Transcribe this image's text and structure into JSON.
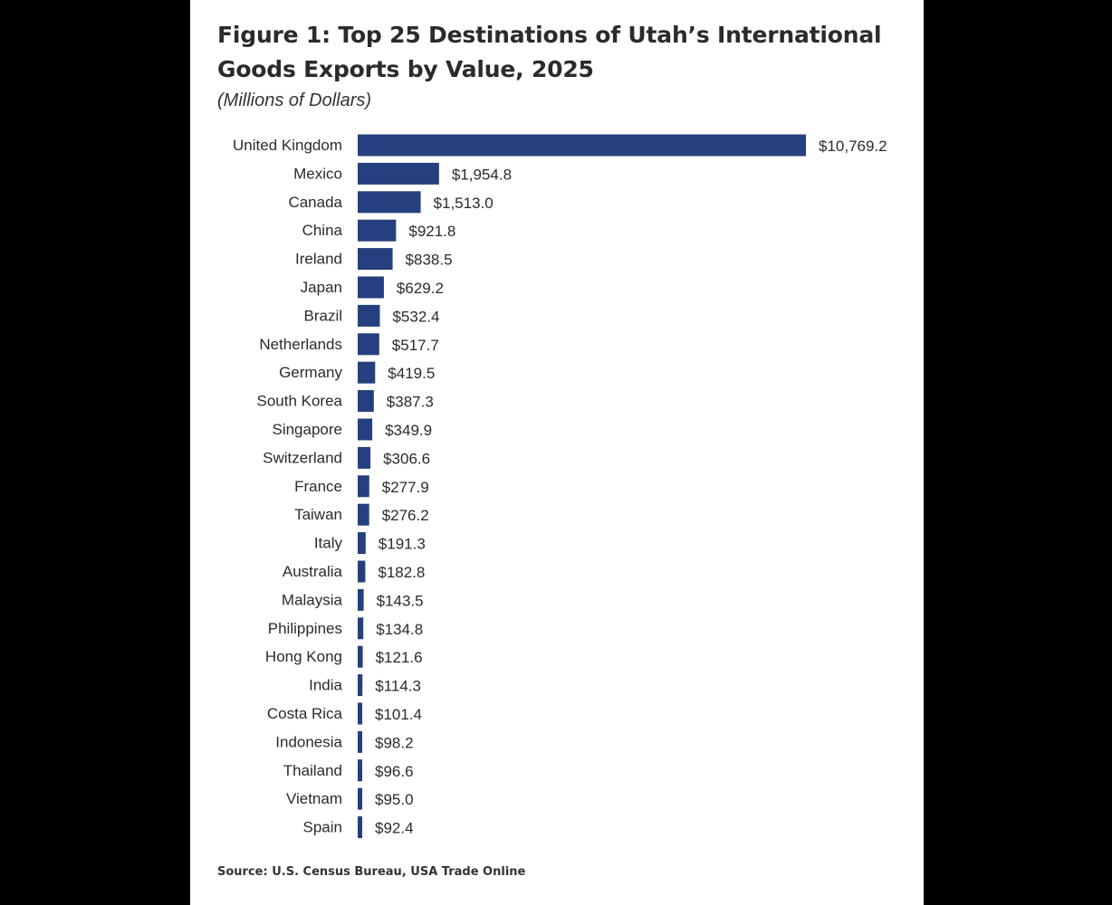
{
  "chart_data": {
    "type": "bar",
    "orientation": "horizontal",
    "title": "Figure 1: Top 25 Destinations of Utah’s International Goods Exports by Value, 2025",
    "subtitle": "(Millions of Dollars)",
    "source": "Source: U.S. Census Bureau, USA Trade Online",
    "bar_color": "#263f7e",
    "categories": [
      "United Kingdom",
      "Mexico",
      "Canada",
      "China",
      "Ireland",
      "Japan",
      "Brazil",
      "Netherlands",
      "Germany",
      "South Korea",
      "Singapore",
      "Switzerland",
      "France",
      "Taiwan",
      "Italy",
      "Australia",
      "Malaysia",
      "Philippines",
      "Hong Kong",
      "India",
      "Costa Rica",
      "Indonesia",
      "Thailand",
      "Vietnam",
      "Spain"
    ],
    "values": [
      10769.2,
      1954.8,
      1513.0,
      921.8,
      838.5,
      629.2,
      532.4,
      517.7,
      419.5,
      387.3,
      349.9,
      306.6,
      277.9,
      276.2,
      191.3,
      182.8,
      143.5,
      134.8,
      121.6,
      114.3,
      101.4,
      98.2,
      96.6,
      95.0,
      92.4
    ],
    "value_labels": [
      "$10,769.2",
      "$1,954.8",
      "$1,513.0",
      "$921.8",
      "$838.5",
      "$629.2",
      "$532.4",
      "$517.7",
      "$419.5",
      "$387.3",
      "$349.9",
      "$306.6",
      "$277.9",
      "$276.2",
      "$191.3",
      "$182.8",
      "$143.5",
      "$134.8",
      "$121.6",
      "$114.3",
      "$101.4",
      "$98.2",
      "$96.6",
      "$95.0",
      "$92.4"
    ],
    "xlim": [
      0,
      10769.2
    ],
    "grid": false,
    "legend": "none"
  }
}
